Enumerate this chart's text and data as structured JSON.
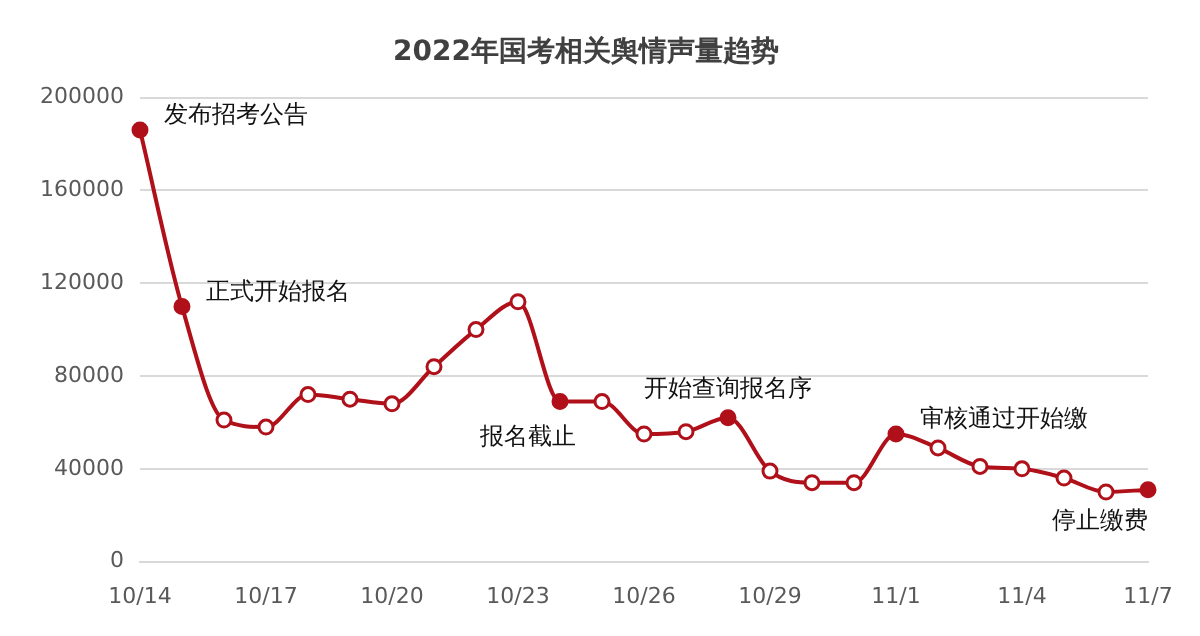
{
  "chart_data": {
    "type": "line",
    "title": "2022年国考相关舆情声量趋势",
    "categories": [
      "10/14",
      null,
      null,
      "10/17",
      null,
      null,
      "10/20",
      null,
      null,
      "10/23",
      null,
      null,
      "10/26",
      null,
      null,
      "10/29",
      null,
      null,
      "11/1",
      null,
      null,
      "11/4",
      null,
      null,
      "11/7"
    ],
    "series": [
      {
        "color": "#b01019",
        "values": [
          186000,
          110000,
          61000,
          58000,
          72000,
          70000,
          68000,
          84000,
          100000,
          112000,
          69000,
          69000,
          55000,
          56000,
          62000,
          39000,
          34000,
          34000,
          55000,
          49000,
          41000,
          40000,
          36000,
          30000,
          31000
        ]
      }
    ],
    "ylim": [
      0,
      200000
    ],
    "yticks": [
      0,
      40000,
      80000,
      120000,
      160000,
      200000
    ],
    "grid": "y",
    "legend": false,
    "marker": "circle",
    "line_style": "solid",
    "annotations": [
      {
        "text": "发布招考公告",
        "x": "10/14",
        "y": 186000
      },
      "正式开始报名",
      "报名截止",
      "开始查询报名序",
      {
        "text": "审核通过开始缴",
        "x": "11/1",
        "y": 55000
      },
      {
        "text": "停止缴费",
        "x": "11/7",
        "y": 31000
      }
    ]
  }
}
